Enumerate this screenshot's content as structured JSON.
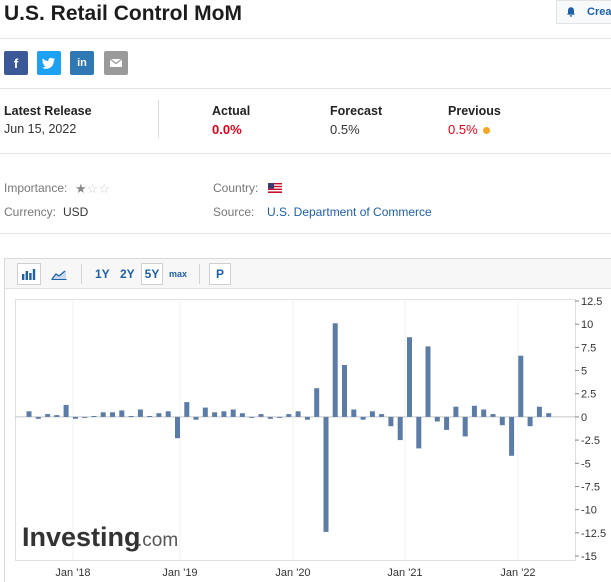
{
  "header": {
    "title": "U.S. Retail Control MoM",
    "create_label": "Creat"
  },
  "share": [
    "f",
    "t",
    "in",
    "✉"
  ],
  "release": {
    "latest_label": "Latest Release",
    "latest_date": "Jun 15, 2022",
    "actual_label": "Actual",
    "actual_value": "0.0%",
    "forecast_label": "Forecast",
    "forecast_value": "0.5%",
    "previous_label": "Previous",
    "previous_value": "0.5%"
  },
  "meta": {
    "importance_label": "Importance:",
    "importance_level": 1,
    "importance_max": 3,
    "country_label": "Country:",
    "country_icon": "us-flag-icon",
    "currency_label": "Currency:",
    "currency_value": "USD",
    "source_label": "Source:",
    "source_value": "U.S. Department of Commerce"
  },
  "toolbar": {
    "ranges": [
      "1Y",
      "2Y",
      "5Y",
      "max"
    ],
    "selected_range": "5Y",
    "p_label": "P"
  },
  "chart_data": {
    "type": "bar",
    "watermark": "Investing",
    "watermark_suffix": ".com",
    "y_ticks": [
      "12.5",
      "10",
      "7.5",
      "5",
      "2.5",
      "0",
      "-2.5",
      "-5",
      "-7.5",
      "-10",
      "-12.5",
      "-15"
    ],
    "ylim": [
      -15,
      12.5
    ],
    "x_ticks": [
      "Jan '18",
      "Jan '19",
      "Jan '20",
      "Jan '21",
      "Jan '22"
    ],
    "bar_color": "#5b7ca6",
    "values": [
      0.6,
      -0.2,
      0.3,
      0.2,
      1.3,
      -0.2,
      -0.1,
      0.1,
      0.5,
      0.5,
      0.7,
      0.1,
      0.8,
      0.1,
      0.4,
      0.6,
      -2.3,
      1.6,
      -0.3,
      1.0,
      0.5,
      0.6,
      0.8,
      0.4,
      0.0,
      0.3,
      -0.2,
      -0.1,
      0.3,
      0.6,
      -0.3,
      3.1,
      -12.4,
      10.1,
      5.6,
      0.8,
      -0.3,
      0.6,
      0.3,
      -1.0,
      -2.5,
      8.6,
      -3.4,
      7.6,
      -0.5,
      -1.4,
      1.1,
      -2.1,
      1.2,
      0.8,
      0.3,
      -0.9,
      -4.2,
      6.6,
      -1.0,
      1.1,
      0.4
    ]
  }
}
